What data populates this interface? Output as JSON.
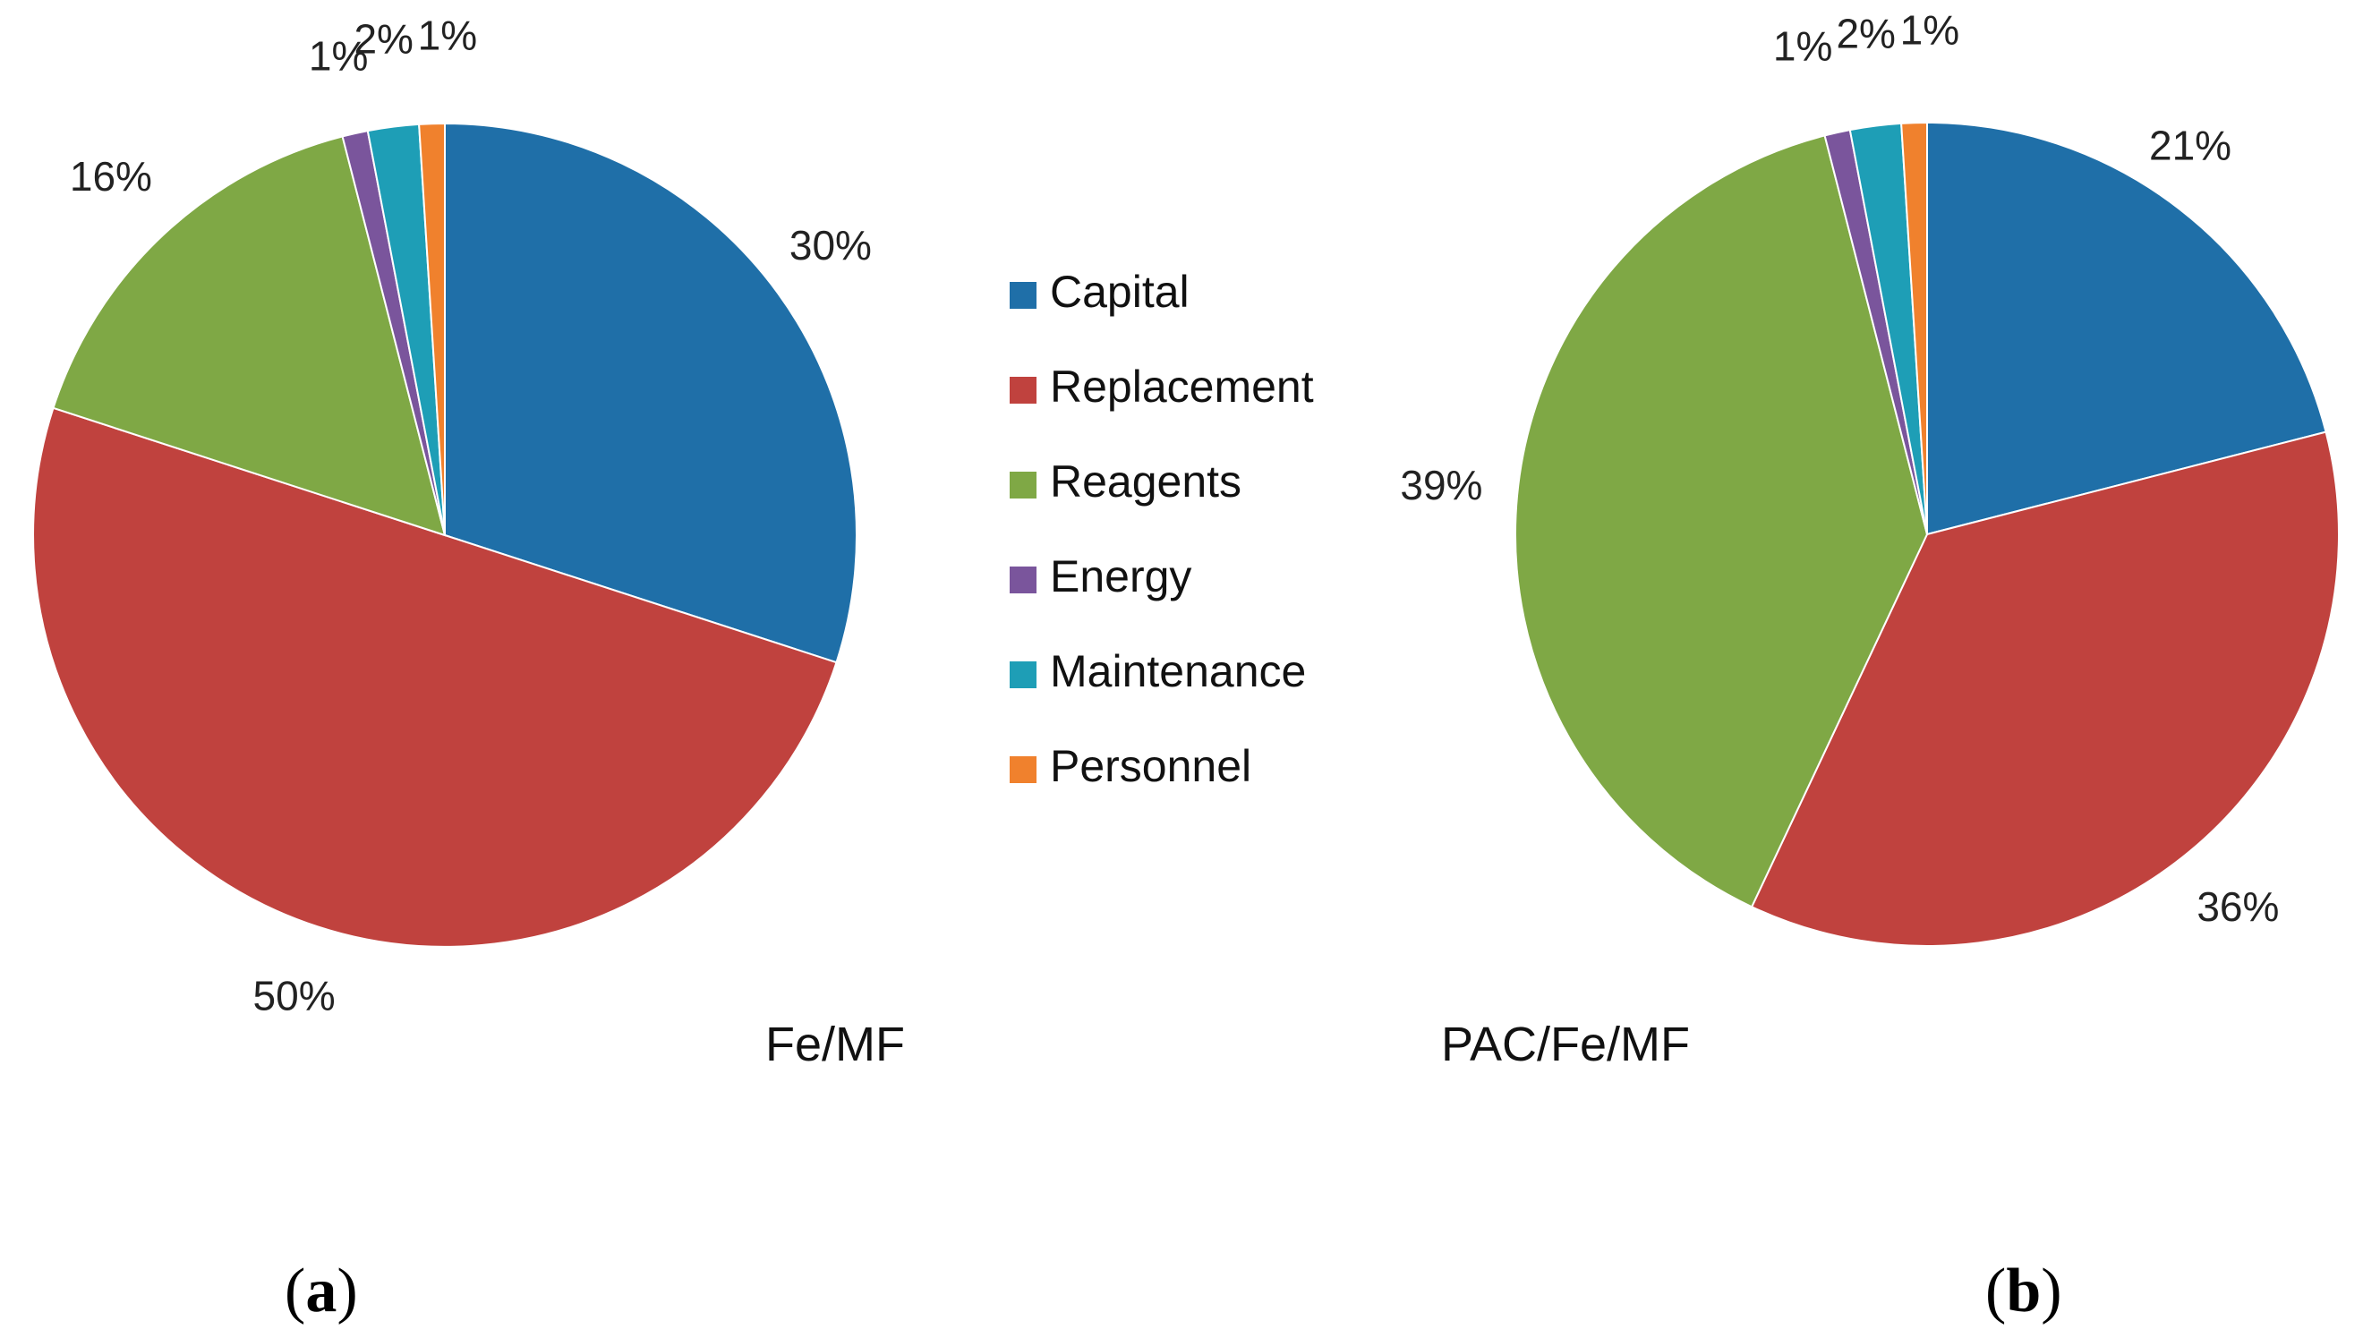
{
  "legend": [
    "Capital",
    "Replacement",
    "Reagents",
    "Energy",
    "Maintenance",
    "Personnel"
  ],
  "colors": [
    "#1F6FA8",
    "#C0423E",
    "#7FA845",
    "#7A559C",
    "#1E9EB6",
    "#F0812D"
  ],
  "chart_data": [
    {
      "type": "pie",
      "panel": "a",
      "caption": "Fe/MF",
      "categories": [
        "Capital",
        "Replacement",
        "Reagents",
        "Energy",
        "Maintenance",
        "Personnel"
      ],
      "values": [
        30,
        50,
        16,
        1,
        2,
        1
      ],
      "labels": [
        "30%",
        "50%",
        "16%",
        "1%",
        "2%",
        "1%"
      ]
    },
    {
      "type": "pie",
      "panel": "b",
      "caption": "PAC/Fe/MF",
      "categories": [
        "Capital",
        "Replacement",
        "Reagents",
        "Energy",
        "Maintenance",
        "Personnel"
      ],
      "values": [
        21,
        36,
        39,
        1,
        2,
        1
      ],
      "labels": [
        "21%",
        "36%",
        "39%",
        "1%",
        "2%",
        "1%"
      ]
    }
  ]
}
